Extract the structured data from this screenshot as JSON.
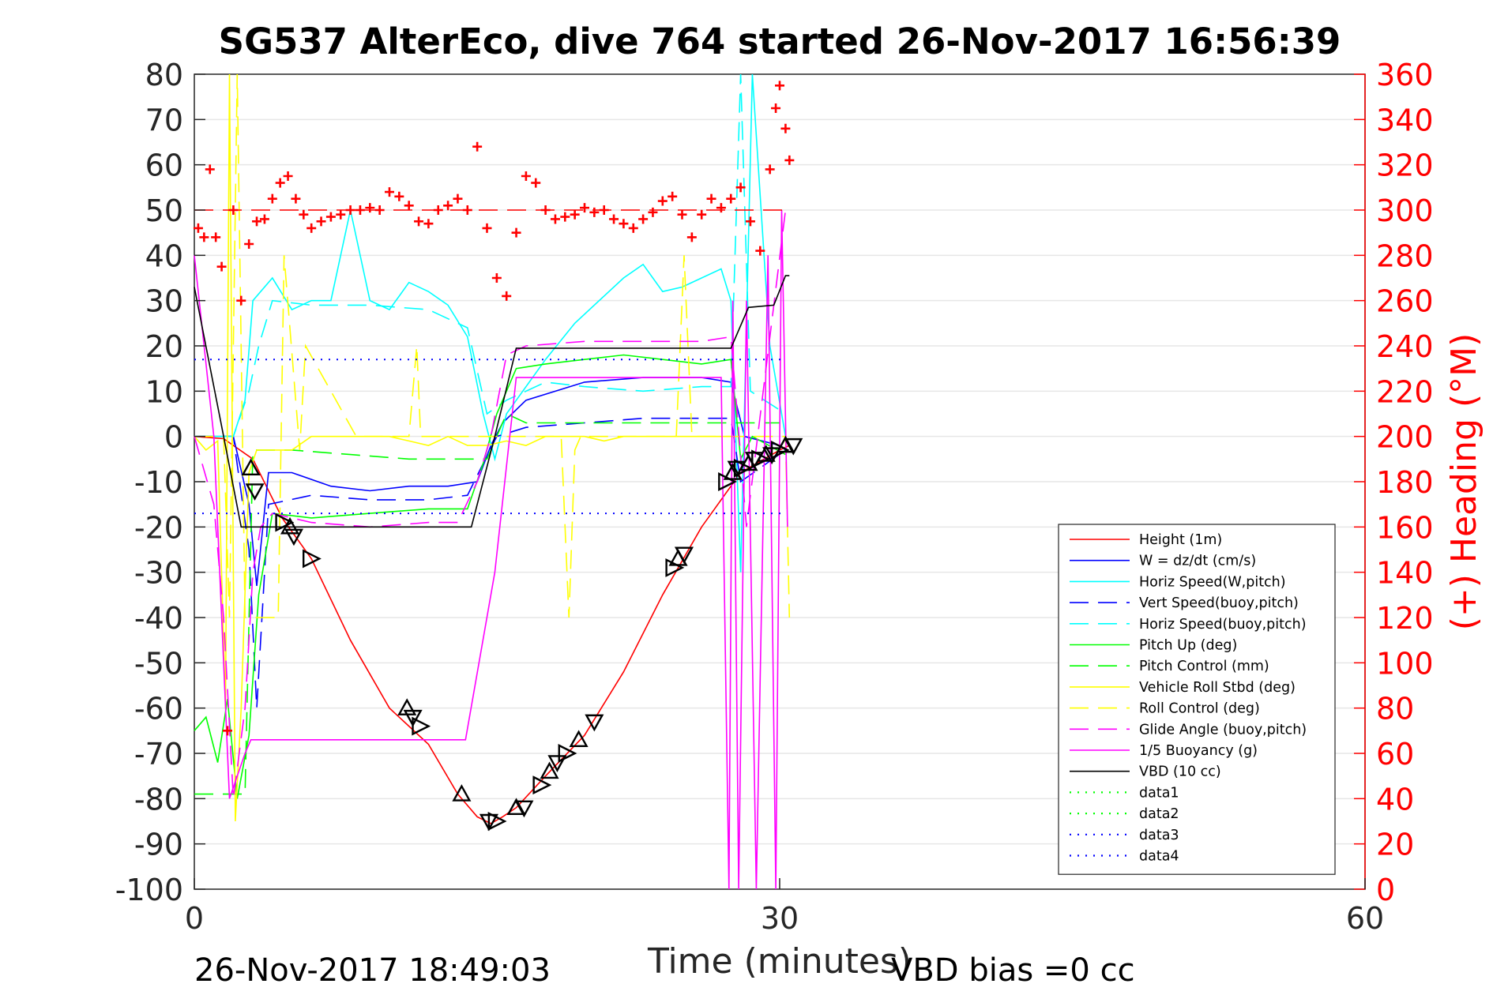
{
  "chart_data": {
    "type": "line",
    "title": "SG537 AlterEco, dive 764 started 26-Nov-2017 16:56:39",
    "xlabel": "Time (minutes)",
    "ylabel_right": "(+) Heading (°M)",
    "xlim": [
      0,
      60
    ],
    "ylim": [
      -100,
      80
    ],
    "ylim_right": [
      0,
      360
    ],
    "xticks": [
      "0",
      "30",
      "60"
    ],
    "yticks": [
      "80",
      "70",
      "60",
      "50",
      "40",
      "30",
      "20",
      "10",
      "0",
      "-10",
      "-20",
      "-30",
      "-40",
      "-50",
      "-60",
      "-70",
      "-80",
      "-90",
      "-100"
    ],
    "yticks_right": [
      "360",
      "340",
      "320",
      "300",
      "280",
      "260",
      "240",
      "220",
      "200",
      "180",
      "160",
      "140",
      "120",
      "100",
      "80",
      "60",
      "40",
      "20",
      "0"
    ],
    "grid": "horizontal",
    "legend_position": "bottom-right",
    "footer_left": "26-Nov-2017 18:49:03",
    "footer_right": "VBD bias =0 cc",
    "colors": {
      "axis": "#262626",
      "heading": "#ff0000",
      "height": "#ff0000",
      "w": "#0000ff",
      "horiz": "#00ffff",
      "pitch": "#00ff00",
      "roll": "#ffff00",
      "glide": "#ff00ff",
      "vbd": "#000000",
      "grid": "#e6e6e6"
    },
    "series": [
      {
        "name": "Height (1m)",
        "color": "#ff0000",
        "dash": "",
        "x": [
          0,
          1.5,
          3,
          4.5,
          6,
          8,
          10,
          12,
          13.5,
          14.5,
          15.2,
          15.8,
          16.5,
          18,
          20,
          22,
          24,
          26,
          28,
          30,
          30.5
        ],
        "y": [
          0,
          -0.5,
          -5,
          -18,
          -27,
          -45,
          -60,
          -68,
          -79,
          -84,
          -85.5,
          -84,
          -82,
          -75,
          -66,
          -52,
          -35,
          -20,
          -8,
          -3,
          -2
        ]
      },
      {
        "name": "W = dz/dt (cm/s)",
        "color": "#0000ff",
        "dash": "",
        "x": [
          0,
          2,
          2.8,
          3.2,
          3.8,
          5,
          7,
          9,
          11,
          13,
          14.5,
          15.2,
          15.8,
          17,
          20,
          23,
          26,
          27.5,
          28.2,
          30,
          30.3
        ],
        "y": [
          0,
          0,
          -15,
          -33,
          -8,
          -8,
          -11,
          -12,
          -11,
          -11,
          -10,
          -2,
          3,
          8,
          12,
          13,
          13,
          12,
          0,
          -2,
          -3
        ]
      },
      {
        "name": "Horiz Speed(W,pitch)",
        "color": "#00ffff",
        "dash": "",
        "x": [
          0,
          2,
          2.6,
          3,
          4,
          5,
          6,
          7,
          8,
          9,
          10,
          11,
          12,
          13,
          14,
          14.8,
          15.4,
          16,
          18,
          19.5,
          21,
          22,
          23,
          24,
          25,
          26,
          27,
          27.5,
          28,
          28.6,
          29.5,
          30.3
        ],
        "y": [
          0,
          0,
          8,
          30,
          35,
          28,
          30,
          30,
          50,
          30,
          28,
          34,
          32,
          29,
          22,
          5,
          -5,
          5,
          17,
          25,
          31,
          35,
          38,
          32,
          33,
          35,
          37,
          30,
          -30,
          80,
          20,
          0
        ]
      },
      {
        "name": "Vert Speed(buoy,pitch)",
        "color": "#0000ff",
        "dash": "24,12",
        "x": [
          0,
          2,
          2.8,
          3.2,
          3.8,
          6,
          9,
          12,
          14,
          14.8,
          15.5,
          17,
          20,
          23,
          26,
          27.5,
          28,
          30.3
        ],
        "y": [
          0,
          0,
          -25,
          -60,
          -15,
          -13,
          -14,
          -14,
          -13,
          -6,
          0,
          2,
          3,
          4,
          4,
          4,
          -10,
          -3
        ]
      },
      {
        "name": "Horiz Speed(buoy,pitch)",
        "color": "#00ffff",
        "dash": "24,12",
        "x": [
          0,
          2,
          2.8,
          3.3,
          4,
          6,
          9,
          12,
          14,
          15,
          16,
          18,
          20,
          23,
          26,
          27.5,
          28,
          28.5,
          30.3
        ],
        "y": [
          0,
          0,
          10,
          20,
          30,
          29,
          29,
          28,
          24,
          5,
          8,
          12,
          11,
          10,
          11,
          11,
          80,
          10,
          5
        ]
      },
      {
        "name": "Pitch Up (deg)",
        "color": "#00ff00",
        "dash": "",
        "x": [
          0,
          0.6,
          1.2,
          1.7,
          2.2,
          2.8,
          3.3,
          4,
          6,
          9,
          12,
          14,
          14.8,
          15.5,
          16.5,
          18,
          20,
          22,
          24,
          26,
          27.5,
          28,
          28.6,
          30.3
        ],
        "y": [
          -65,
          -62,
          -72,
          -58,
          -80,
          -66,
          -35,
          -17,
          -18,
          -17,
          -16,
          -16,
          -6,
          5,
          15,
          16,
          17,
          18,
          17,
          16,
          17,
          -5,
          0,
          -4
        ]
      },
      {
        "name": "Pitch Control (mm)",
        "color": "#00ff00",
        "dash": "24,12",
        "x": [
          0,
          2.6,
          3,
          5,
          8,
          11,
          14,
          15,
          16,
          17,
          20,
          23,
          26,
          27.5,
          28,
          30
        ],
        "y": [
          -79,
          -79,
          -3,
          -3,
          -4,
          -5,
          -5,
          -5,
          5,
          3,
          3,
          3,
          3,
          3,
          3,
          3
        ]
      },
      {
        "name": "Vehicle Roll Stbd (deg)",
        "color": "#ffff00",
        "dash": "",
        "x": [
          0,
          0.6,
          1.2,
          1.6,
          1.8,
          2.1,
          2.4,
          2.8,
          3.2,
          4,
          5,
          6,
          8,
          10,
          11,
          12,
          13,
          14,
          15,
          16,
          17,
          18,
          19,
          20,
          21,
          22,
          23,
          24,
          25,
          26,
          27,
          27.5
        ],
        "y": [
          0,
          -3,
          -1,
          -60,
          80,
          -85,
          -60,
          -8,
          -3,
          -3,
          -3,
          0,
          0,
          0,
          -1,
          -2,
          0,
          -2,
          -2,
          -1,
          -2,
          0,
          0,
          0,
          -1,
          0,
          0,
          0,
          0,
          0,
          0,
          0
        ]
      },
      {
        "name": "Roll Control (deg)",
        "color": "#ffff00",
        "dash": "24,12",
        "x": [
          0,
          1.5,
          1.8,
          2.2,
          2.6,
          3,
          4.3,
          4.6,
          5.4,
          5.7,
          8.3,
          8.6,
          11,
          11.4,
          11.6,
          12,
          15,
          18.8,
          19.2,
          19.5,
          19.8,
          22,
          24.7,
          25.1,
          25.5,
          27.5,
          28,
          30.3,
          30.5
        ],
        "y": [
          0,
          0,
          -40,
          80,
          -40,
          -40,
          -40,
          40,
          -3,
          20,
          0,
          0,
          0,
          20,
          0,
          0,
          0,
          0,
          -40,
          -3,
          0,
          0,
          0,
          40,
          0,
          0,
          0,
          0,
          -40
        ]
      },
      {
        "name": "Glide Angle (buoy,pitch)",
        "color": "#ff00ff",
        "dash": "24,12",
        "x": [
          0,
          1,
          1.5,
          2,
          2.6,
          3,
          3.4,
          4,
          6,
          9,
          12,
          13.5,
          14.5,
          15.2,
          16,
          17,
          20,
          23,
          26,
          27.5,
          28.3,
          30.3
        ],
        "y": [
          0,
          -15,
          -40,
          -80,
          -60,
          -30,
          -20,
          -17,
          -19,
          -20,
          -19,
          -19,
          -10,
          0,
          18,
          20,
          21,
          21,
          21,
          22,
          -20,
          50
        ]
      },
      {
        "name": "1/5 Buoyancy (g)",
        "color": "#ff00ff",
        "dash": "",
        "x": [
          0,
          1,
          1.8,
          2.6,
          2.9,
          3.2,
          6,
          10,
          13.9,
          15.4,
          16.5,
          19,
          22,
          25,
          27,
          27.4,
          27.6,
          27.9,
          28.3,
          28.8,
          29.4,
          29.8,
          30.1,
          30.4
        ],
        "y": [
          40,
          0,
          -80,
          -70,
          -67,
          -67,
          -67,
          -67,
          -67,
          -30,
          13,
          13,
          13,
          13,
          13,
          -100,
          30,
          -100,
          30,
          -100,
          40,
          -100,
          50,
          -20
        ]
      },
      {
        "name": "VBD (10 cc)",
        "color": "#000000",
        "dash": "",
        "x": [
          0,
          1.5,
          2.4,
          6,
          9,
          12,
          13.5,
          14.2,
          15.4,
          16.5,
          20,
          24,
          27.5,
          28.4,
          29.7,
          30.3,
          30.5
        ],
        "y": [
          33,
          0,
          -20,
          -20,
          -20,
          -20,
          -20,
          -20,
          0,
          19.5,
          19.5,
          19.5,
          19.5,
          28.5,
          29,
          35.5,
          35.5
        ]
      },
      {
        "name": "data1",
        "color": "#00ff00",
        "dash": "2,8",
        "x": [],
        "y": []
      },
      {
        "name": "data2",
        "color": "#00ff00",
        "dash": "2,8",
        "x": [],
        "y": []
      },
      {
        "name": "data3",
        "color": "#0000ff",
        "dash": "2,8",
        "x": [
          0,
          30.3
        ],
        "y": [
          17,
          17
        ]
      },
      {
        "name": "data4",
        "color": "#0000ff",
        "dash": "2,8",
        "x": [
          0,
          30.3
        ],
        "y": [
          -17,
          -17
        ]
      }
    ],
    "heading_series": {
      "axis": "right",
      "marker": "+",
      "color": "#ff0000",
      "target": 300,
      "x": [
        0.2,
        0.5,
        0.8,
        1.1,
        1.4,
        1.7,
        2.0,
        2.4,
        2.8,
        3.2,
        3.6,
        4.0,
        4.4,
        4.8,
        5.2,
        5.6,
        6.0,
        6.5,
        7.0,
        7.5,
        8.0,
        8.5,
        9.0,
        9.5,
        10.0,
        10.5,
        11.0,
        11.5,
        12.0,
        12.5,
        13.0,
        13.5,
        14.0,
        14.5,
        15.0,
        15.5,
        16.0,
        16.5,
        17.0,
        17.5,
        18.0,
        18.5,
        19.0,
        19.5,
        20.0,
        20.5,
        21.0,
        21.5,
        22.0,
        22.5,
        23.0,
        23.5,
        24.0,
        24.5,
        25.0,
        25.5,
        26.0,
        26.5,
        27.0,
        27.5,
        28.0,
        28.5,
        29.0,
        29.5,
        29.8,
        30.0,
        30.3,
        30.5
      ],
      "y": [
        292,
        288,
        318,
        288,
        275,
        70,
        300,
        260,
        285,
        295,
        296,
        305,
        312,
        315,
        305,
        298,
        292,
        295,
        297,
        298,
        300,
        300,
        301,
        300,
        308,
        306,
        302,
        295,
        294,
        300,
        302,
        305,
        300,
        328,
        292,
        270,
        262,
        290,
        315,
        312,
        300,
        296,
        297,
        298,
        301,
        299,
        300,
        296,
        294,
        292,
        296,
        299,
        304,
        306,
        298,
        288,
        298,
        305,
        301,
        305,
        310,
        295,
        282,
        318,
        345,
        355,
        336,
        322
      ]
    },
    "markers": {
      "shape": "triangle",
      "color": "#000000",
      "x": [
        2.9,
        3.1,
        4.6,
        4.9,
        5.1,
        6.0,
        10.9,
        11.2,
        11.6,
        13.7,
        15.1,
        15.5,
        16.5,
        16.9,
        17.8,
        18.2,
        18.6,
        19.1,
        19.7,
        20.5,
        24.6,
        24.8,
        25.1,
        27.3,
        27.6,
        27.8,
        28.1,
        28.4,
        28.7,
        29.0,
        29.3,
        29.6,
        30.0,
        30.3,
        30.7
      ],
      "y": [
        -7,
        -12,
        -19,
        -20,
        -22,
        -27,
        -60,
        -62,
        -64,
        -79,
        -85,
        -85,
        -82,
        -82,
        -77,
        -74,
        -72,
        -70,
        -67,
        -63,
        -29,
        -27,
        -26,
        -10,
        -8,
        -7,
        -7,
        -6,
        -5,
        -5,
        -4,
        -4,
        -3,
        -2,
        -2
      ]
    }
  }
}
